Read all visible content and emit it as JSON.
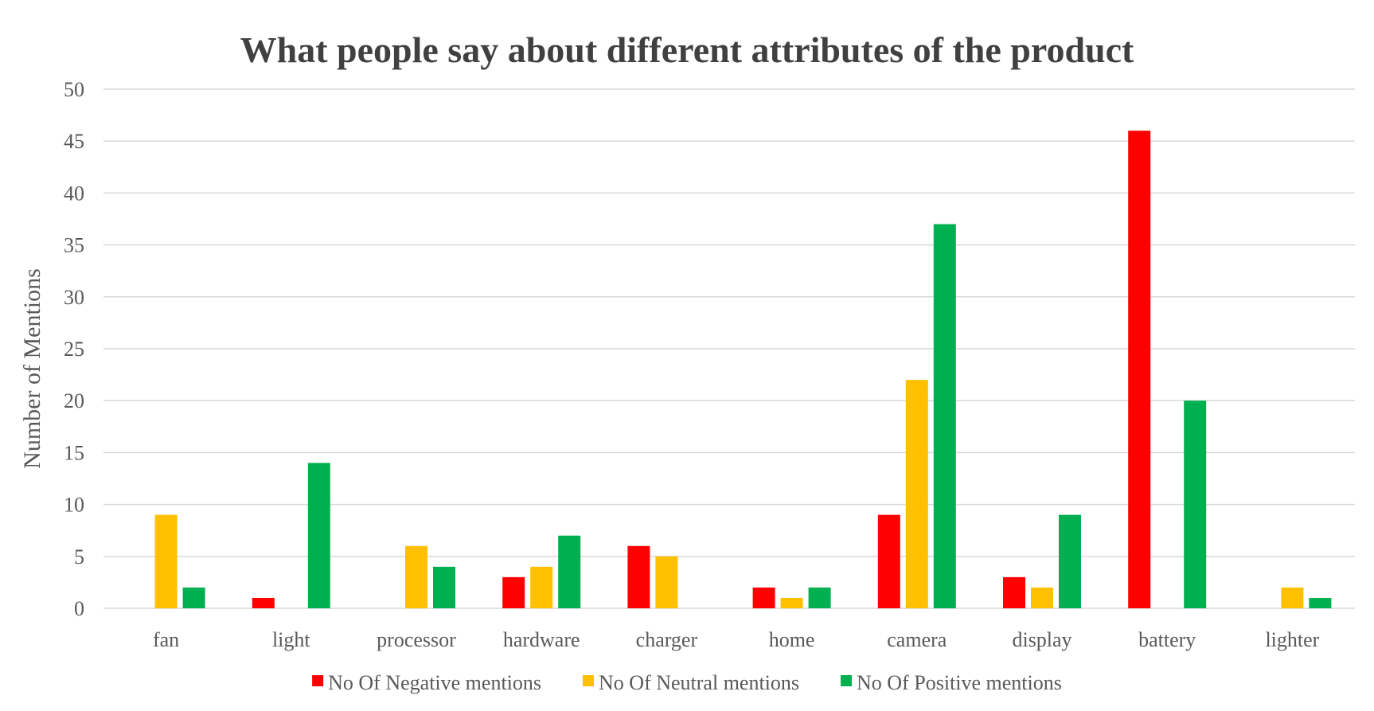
{
  "chart_data": {
    "type": "bar",
    "title": "What people say about different attributes of the product",
    "xlabel": "",
    "ylabel": "Number of Mentions",
    "ylim": [
      0,
      50
    ],
    "ytick_step": 5,
    "grid": true,
    "legend_position": "bottom",
    "categories": [
      "fan",
      "light",
      "processor",
      "hardware",
      "charger",
      "home",
      "camera",
      "display",
      "battery",
      "lighter"
    ],
    "series": [
      {
        "name": "No Of Negative mentions",
        "color": "#FF0000",
        "values": [
          null,
          1,
          null,
          3,
          6,
          2,
          9,
          3,
          46,
          null
        ]
      },
      {
        "name": "No Of Neutral mentions",
        "color": "#FFC000",
        "values": [
          9,
          null,
          6,
          4,
          5,
          1,
          22,
          2,
          null,
          2
        ]
      },
      {
        "name": "No Of Positive mentions",
        "color": "#00B050",
        "values": [
          2,
          14,
          4,
          7,
          null,
          2,
          37,
          9,
          20,
          1
        ]
      }
    ]
  }
}
